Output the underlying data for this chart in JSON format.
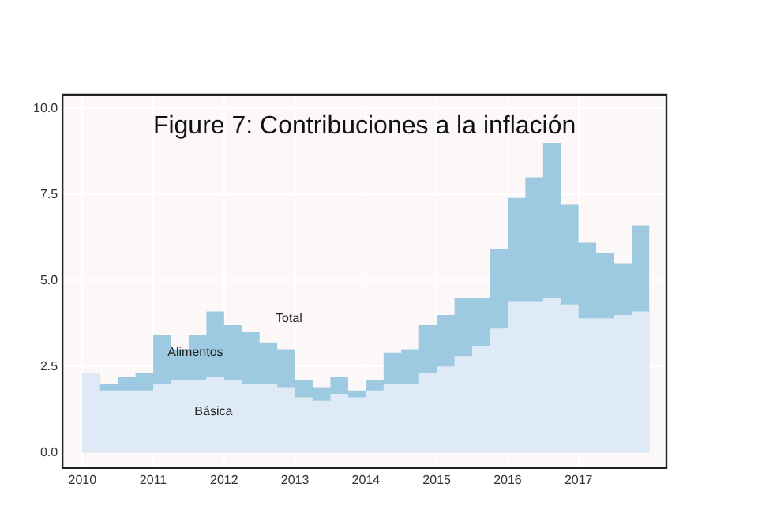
{
  "chart_data": {
    "type": "area",
    "title": "Figure 7: Contribuciones a la inflación",
    "stacked": true,
    "grid": true,
    "legend": false,
    "x": [
      2010,
      2010.25,
      2010.5,
      2010.75,
      2011,
      2011.25,
      2011.5,
      2011.75,
      2012,
      2012.25,
      2012.5,
      2012.75,
      2013,
      2013.25,
      2013.5,
      2013.75,
      2014,
      2014.25,
      2014.5,
      2014.75,
      2015,
      2015.25,
      2015.5,
      2015.75,
      2016,
      2016.25,
      2016.5,
      2016.75,
      2017,
      2017.25,
      2017.5,
      2017.75,
      2018
    ],
    "series": [
      {
        "name": "Básica",
        "color": "#deebf7",
        "values": [
          2.3,
          1.8,
          1.8,
          1.8,
          2.0,
          2.1,
          2.1,
          2.2,
          2.1,
          2.0,
          2.0,
          1.9,
          1.6,
          1.5,
          1.7,
          1.6,
          1.8,
          2.0,
          2.0,
          2.3,
          2.5,
          2.8,
          3.1,
          3.6,
          4.4,
          4.4,
          4.5,
          4.3,
          3.9,
          3.9,
          4.0,
          4.1,
          4.1
        ]
      },
      {
        "name": "Alimentos",
        "color": "#9ecae1",
        "values": [
          0,
          0.2,
          0.4,
          0.5,
          1.4,
          0.9,
          1.3,
          1.9,
          1.6,
          1.5,
          1.2,
          1.1,
          0.5,
          0.4,
          0.5,
          0.2,
          0.3,
          0.9,
          1.0,
          1.4,
          1.5,
          1.7,
          1.4,
          2.3,
          3.0,
          3.6,
          4.5,
          2.9,
          2.2,
          1.9,
          1.5,
          2.5,
          2.5
        ]
      }
    ],
    "xlim": [
      2009.72,
      2018.24
    ],
    "xticks": [
      2010,
      2011,
      2012,
      2013,
      2014,
      2015,
      2016,
      2017
    ],
    "ylim": [
      -0.45,
      10.4
    ],
    "yticks": [
      {
        "value": 0,
        "label": "0.0"
      },
      {
        "value": 2.5,
        "label": "2.5"
      },
      {
        "value": 5,
        "label": "5.0"
      },
      {
        "value": 7.5,
        "label": "7.5"
      },
      {
        "value": 10,
        "label": "10.0"
      }
    ],
    "annotations": [
      "Total"
    ]
  }
}
